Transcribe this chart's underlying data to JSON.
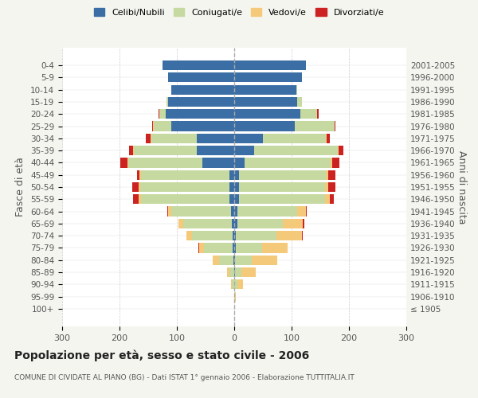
{
  "age_groups": [
    "100+",
    "95-99",
    "90-94",
    "85-89",
    "80-84",
    "75-79",
    "70-74",
    "65-69",
    "60-64",
    "55-59",
    "50-54",
    "45-49",
    "40-44",
    "35-39",
    "30-34",
    "25-29",
    "20-24",
    "15-19",
    "10-14",
    "5-9",
    "0-4"
  ],
  "birth_years": [
    "≤ 1905",
    "1906-1910",
    "1911-1915",
    "1916-1920",
    "1921-1925",
    "1926-1930",
    "1931-1935",
    "1936-1940",
    "1941-1945",
    "1946-1950",
    "1951-1955",
    "1956-1960",
    "1961-1965",
    "1966-1970",
    "1971-1975",
    "1976-1980",
    "1981-1985",
    "1986-1990",
    "1991-1995",
    "1996-2000",
    "2001-2005"
  ],
  "males": {
    "celibi": [
      0,
      0,
      0,
      0,
      2,
      3,
      3,
      4,
      5,
      8,
      9,
      8,
      55,
      65,
      65,
      110,
      120,
      115,
      110,
      115,
      125
    ],
    "coniugati": [
      0,
      0,
      4,
      8,
      25,
      50,
      70,
      85,
      105,
      155,
      155,
      155,
      130,
      110,
      80,
      30,
      10,
      3,
      0,
      0,
      0
    ],
    "vedovi": [
      0,
      0,
      2,
      5,
      10,
      8,
      10,
      8,
      5,
      3,
      2,
      2,
      1,
      1,
      1,
      1,
      0,
      0,
      0,
      0,
      0
    ],
    "divorziati": [
      0,
      0,
      0,
      0,
      0,
      2,
      0,
      0,
      2,
      10,
      12,
      5,
      12,
      8,
      8,
      2,
      2,
      0,
      0,
      0,
      0
    ]
  },
  "females": {
    "nubili": [
      0,
      0,
      0,
      2,
      2,
      3,
      3,
      5,
      5,
      8,
      9,
      8,
      18,
      35,
      50,
      105,
      115,
      110,
      108,
      118,
      125
    ],
    "coniugate": [
      0,
      2,
      5,
      10,
      28,
      45,
      70,
      80,
      105,
      150,
      150,
      152,
      150,
      145,
      110,
      70,
      30,
      8,
      2,
      0,
      0
    ],
    "vedove": [
      0,
      1,
      10,
      25,
      45,
      45,
      45,
      35,
      15,
      8,
      5,
      4,
      3,
      2,
      1,
      0,
      0,
      0,
      0,
      0,
      0
    ],
    "divorziate": [
      0,
      0,
      0,
      0,
      0,
      0,
      2,
      2,
      2,
      8,
      12,
      12,
      12,
      8,
      5,
      2,
      2,
      0,
      0,
      0,
      0
    ]
  },
  "colors": {
    "celibi_nubili": "#3b6ea5",
    "coniugati": "#c5d9a0",
    "vedovi": "#f5c97a",
    "divorziati": "#cc2222"
  },
  "xlim": 300,
  "title": "Popolazione per età, sesso e stato civile - 2006",
  "subtitle": "COMUNE DI CIVIDATE AL PIANO (BG) - Dati ISTAT 1° gennaio 2006 - Elaborazione TUTTITALIA.IT",
  "ylabel_left": "Fasce di età",
  "ylabel_right": "Anni di nascita",
  "bg_color": "#f5f5f0",
  "plot_bg": "#ffffff"
}
